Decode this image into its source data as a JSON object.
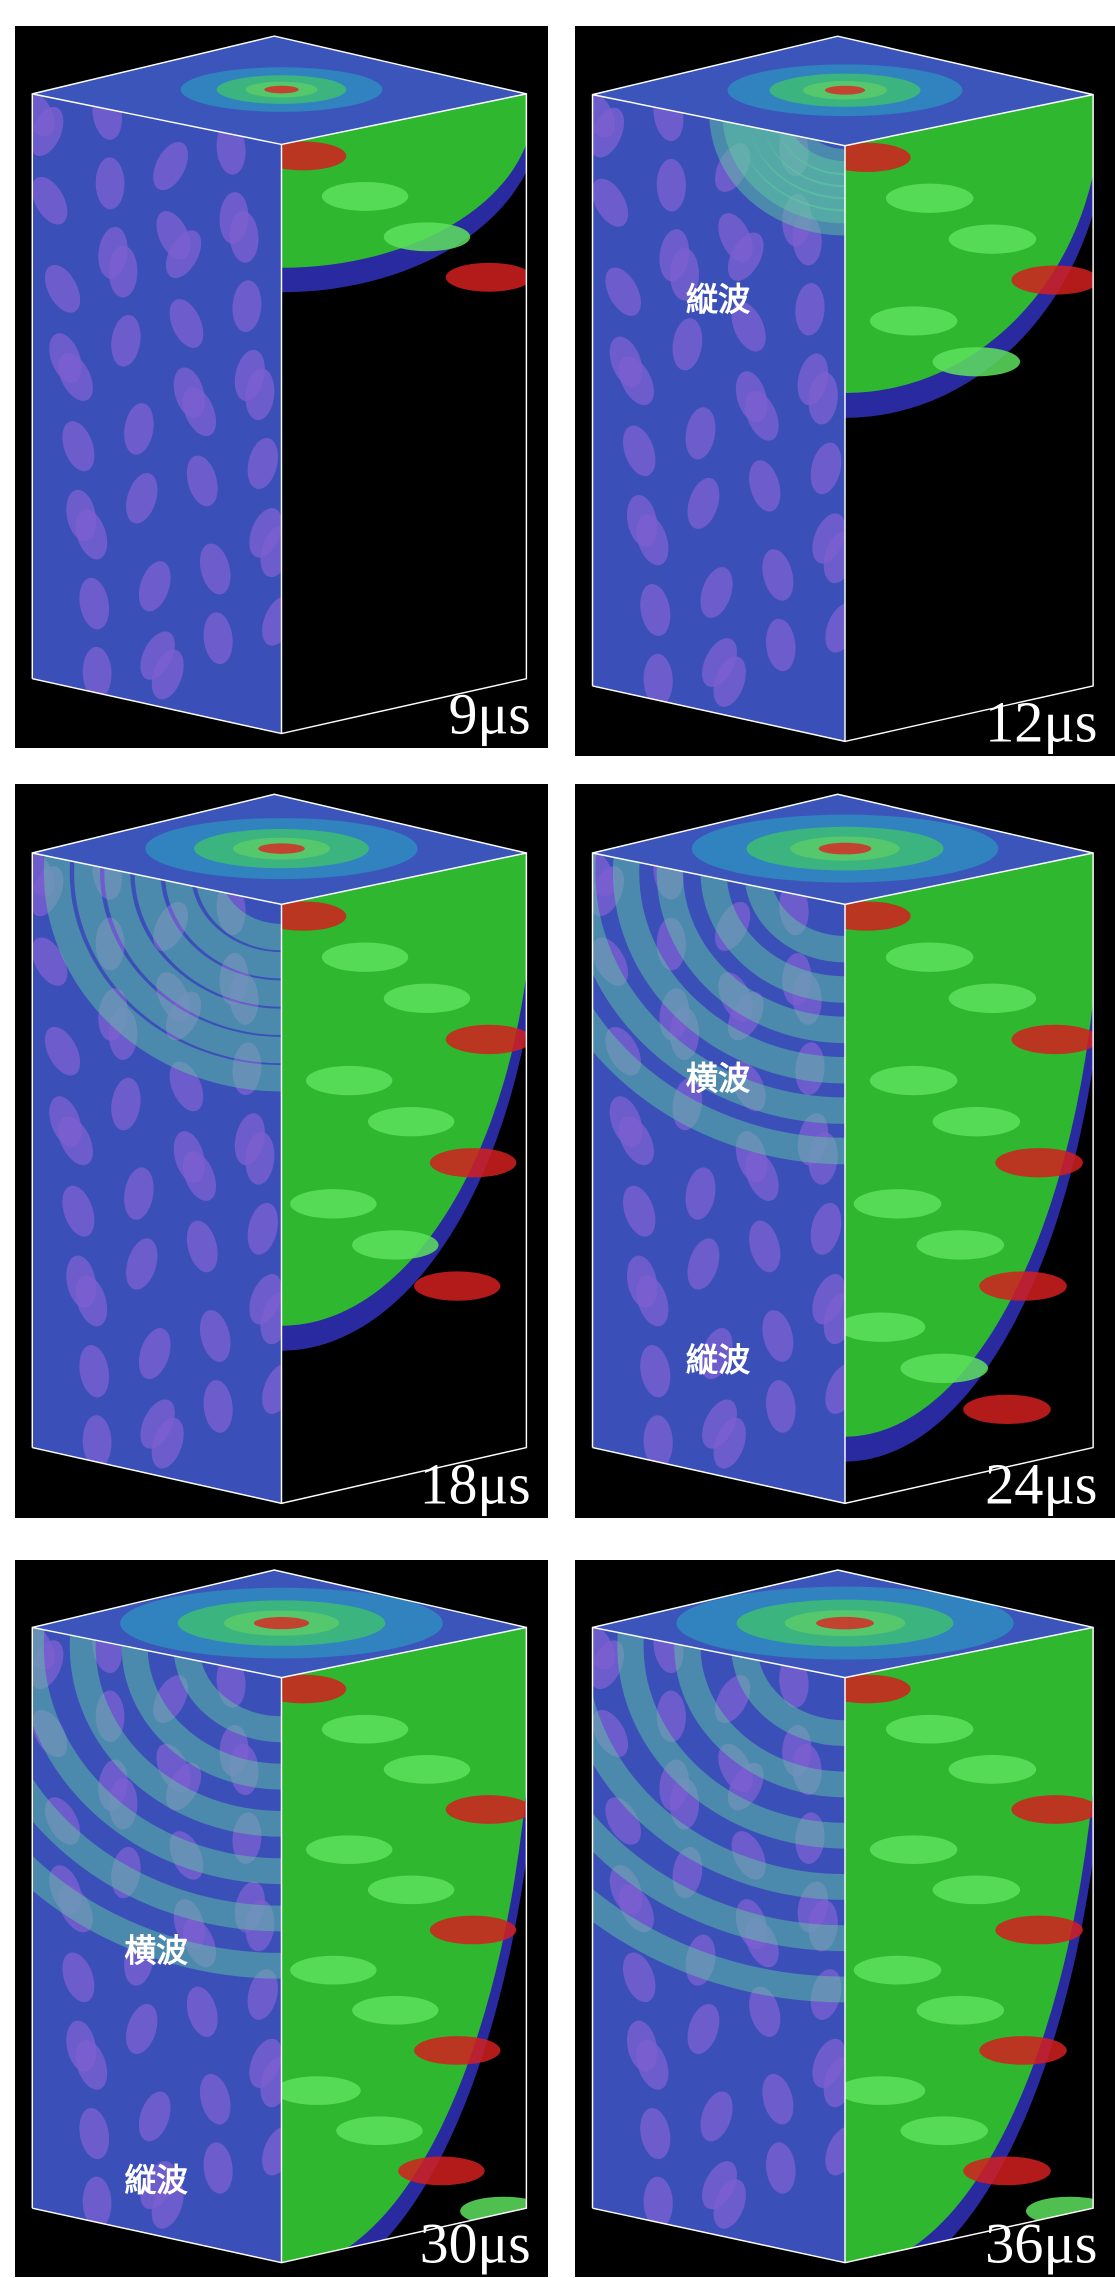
{
  "panels": [
    {
      "time": "9μs"
    },
    {
      "time": "12μs",
      "labels": [
        "縦波"
      ]
    },
    {
      "time": "18μs"
    },
    {
      "time": "24μs",
      "labels": [
        "横波",
        "縦波"
      ]
    },
    {
      "time": "30μs",
      "labels": [
        "横波",
        "縦波"
      ]
    },
    {
      "time": "36μs"
    }
  ]
}
